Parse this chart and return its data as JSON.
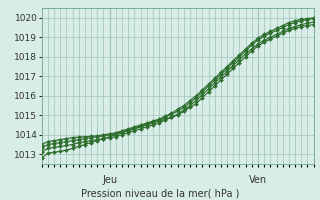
{
  "bg_color": "#d8ede8",
  "grid_color": "#a8c8c0",
  "line_color": "#2d6e2d",
  "marker_color": "#2d6e2d",
  "xlabel_text": "Pression niveau de la mer( hPa )",
  "jeu_label": "Jeu",
  "ven_label": "Ven",
  "ylim": [
    1012.5,
    1020.5
  ],
  "xlim": [
    0,
    44
  ],
  "yticks": [
    1013,
    1014,
    1015,
    1016,
    1017,
    1018,
    1019,
    1020
  ],
  "jeu_x": 11,
  "ven_x": 35,
  "series": [
    [
      1012.8,
      1013.05,
      1013.1,
      1013.15,
      1013.2,
      1013.3,
      1013.4,
      1013.5,
      1013.6,
      1013.7,
      1013.8,
      1013.9,
      1014.0,
      1014.1,
      1014.2,
      1014.3,
      1014.4,
      1014.5,
      1014.6,
      1014.7,
      1014.8,
      1014.9,
      1015.0,
      1015.2,
      1015.4,
      1015.6,
      1015.9,
      1016.2,
      1016.5,
      1016.8,
      1017.1,
      1017.4,
      1017.7,
      1018.0,
      1018.3,
      1018.55,
      1018.75,
      1018.9,
      1019.05,
      1019.2,
      1019.35,
      1019.45,
      1019.55,
      1019.6,
      1019.65
    ],
    [
      1013.1,
      1013.3,
      1013.35,
      1013.4,
      1013.45,
      1013.5,
      1013.6,
      1013.65,
      1013.7,
      1013.75,
      1013.8,
      1013.85,
      1013.9,
      1014.0,
      1014.1,
      1014.2,
      1014.3,
      1014.4,
      1014.5,
      1014.6,
      1014.75,
      1014.9,
      1015.05,
      1015.25,
      1015.5,
      1015.75,
      1016.05,
      1016.35,
      1016.65,
      1016.95,
      1017.25,
      1017.55,
      1017.85,
      1018.15,
      1018.4,
      1018.65,
      1018.85,
      1019.0,
      1019.15,
      1019.3,
      1019.45,
      1019.55,
      1019.65,
      1019.72,
      1019.78
    ],
    [
      1013.3,
      1013.5,
      1013.55,
      1013.6,
      1013.65,
      1013.7,
      1013.75,
      1013.8,
      1013.85,
      1013.9,
      1013.95,
      1014.0,
      1014.05,
      1014.15,
      1014.25,
      1014.35,
      1014.45,
      1014.55,
      1014.65,
      1014.75,
      1014.9,
      1015.05,
      1015.2,
      1015.4,
      1015.65,
      1015.9,
      1016.2,
      1016.5,
      1016.8,
      1017.1,
      1017.4,
      1017.7,
      1018.0,
      1018.3,
      1018.6,
      1018.85,
      1019.05,
      1019.2,
      1019.35,
      1019.5,
      1019.65,
      1019.75,
      1019.85,
      1019.9,
      1019.95
    ],
    [
      1013.5,
      1013.65,
      1013.7,
      1013.75,
      1013.8,
      1013.85,
      1013.88,
      1013.9,
      1013.92,
      1013.95,
      1014.0,
      1014.05,
      1014.1,
      1014.2,
      1014.3,
      1014.4,
      1014.5,
      1014.6,
      1014.7,
      1014.8,
      1014.95,
      1015.1,
      1015.3,
      1015.5,
      1015.75,
      1016.0,
      1016.3,
      1016.6,
      1016.9,
      1017.2,
      1017.5,
      1017.8,
      1018.1,
      1018.4,
      1018.7,
      1018.95,
      1019.15,
      1019.3,
      1019.45,
      1019.6,
      1019.75,
      1019.85,
      1019.92,
      1019.96,
      1020.0
    ]
  ]
}
